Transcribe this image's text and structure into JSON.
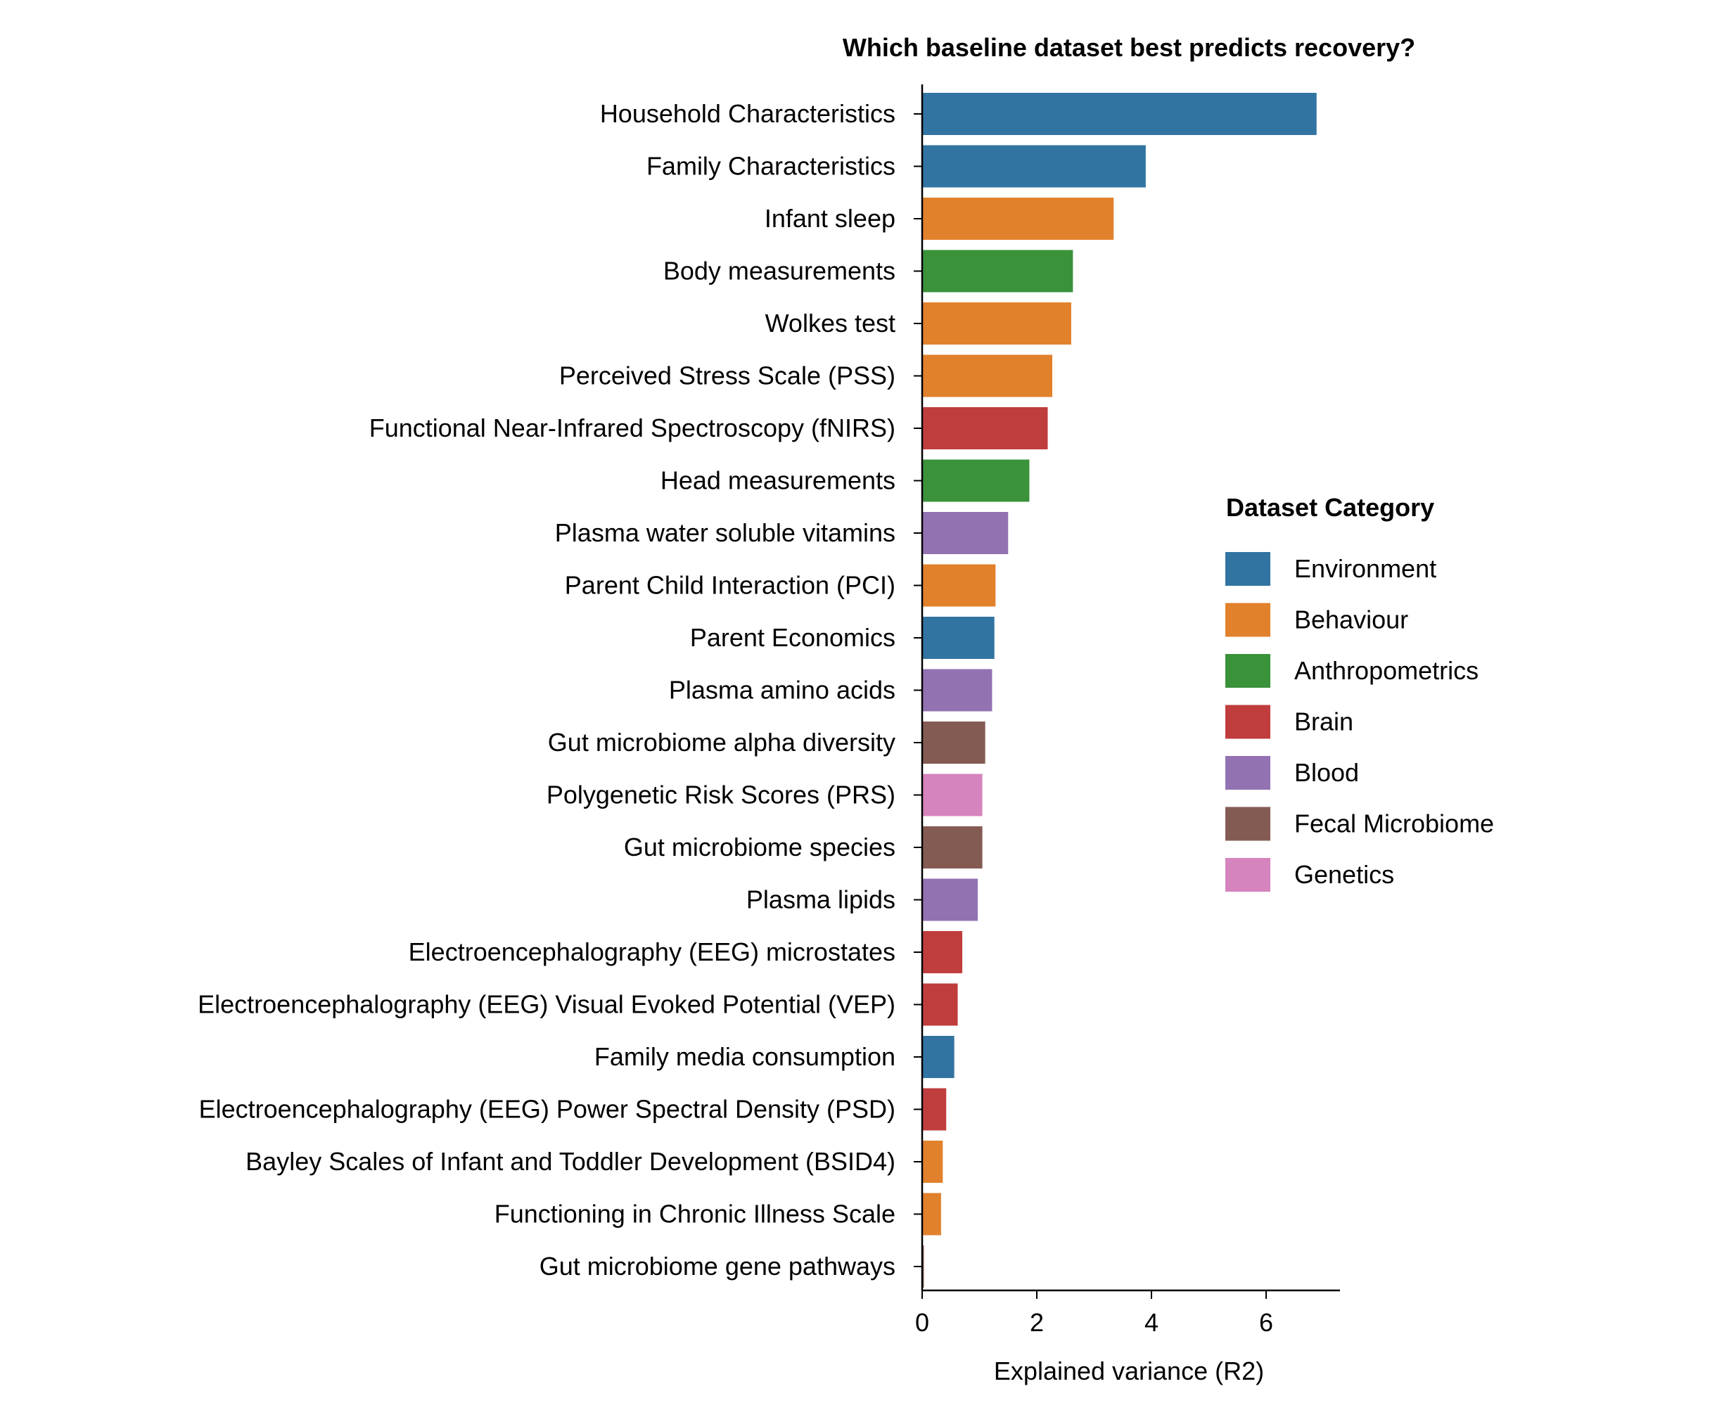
{
  "chart_data": {
    "type": "bar",
    "orientation": "horizontal",
    "title": "Which baseline dataset best predicts recovery?",
    "xlabel": "Explained variance (R2)",
    "ylabel": "",
    "xlim": [
      0,
      7.2
    ],
    "xticks": [
      0,
      2,
      4,
      6
    ],
    "grid": false,
    "legend_position": "right",
    "legend_title": "Dataset Category",
    "categories": [
      "Household Characteristics",
      "Family Characteristics",
      "Infant sleep",
      "Body measurements",
      "Wolkes test",
      "Perceived Stress Scale (PSS)",
      "Functional Near-Infrared Spectroscopy (fNIRS)",
      "Head measurements",
      "Plasma water soluble vitamins",
      "Parent Child Interaction (PCI)",
      "Parent Economics",
      "Plasma amino acids",
      "Gut microbiome alpha diversity",
      "Polygenetic Risk Scores (PRS)",
      "Gut microbiome species",
      "Plasma lipids",
      "Electroencephalography (EEG) microstates",
      "Electroencephalography (EEG) Visual Evoked Potential (VEP)",
      "Family media consumption",
      "Electroencephalography (EEG) Power Spectral Density (PSD)",
      "Bayley Scales of Infant and Toddler Development (BSID4)",
      "Functioning in Chronic Illness Scale",
      "Gut microbiome gene pathways"
    ],
    "values": [
      6.88,
      3.9,
      3.34,
      2.63,
      2.6,
      2.27,
      2.19,
      1.87,
      1.5,
      1.28,
      1.26,
      1.22,
      1.1,
      1.05,
      1.05,
      0.97,
      0.7,
      0.62,
      0.56,
      0.42,
      0.36,
      0.33,
      0.03
    ],
    "category_groups": [
      "Environment",
      "Environment",
      "Behaviour",
      "Anthropometrics",
      "Behaviour",
      "Behaviour",
      "Brain",
      "Anthropometrics",
      "Blood",
      "Behaviour",
      "Environment",
      "Blood",
      "Fecal Microbiome",
      "Genetics",
      "Fecal Microbiome",
      "Blood",
      "Brain",
      "Brain",
      "Environment",
      "Brain",
      "Behaviour",
      "Behaviour",
      "Fecal Microbiome"
    ],
    "legend": [
      {
        "name": "Environment",
        "color": "#3274a1"
      },
      {
        "name": "Behaviour",
        "color": "#e1812c"
      },
      {
        "name": "Anthropometrics",
        "color": "#3a923a"
      },
      {
        "name": "Brain",
        "color": "#c03d3e"
      },
      {
        "name": "Blood",
        "color": "#9372b2"
      },
      {
        "name": "Fecal Microbiome",
        "color": "#845b53"
      },
      {
        "name": "Genetics",
        "color": "#d684bd"
      }
    ]
  }
}
